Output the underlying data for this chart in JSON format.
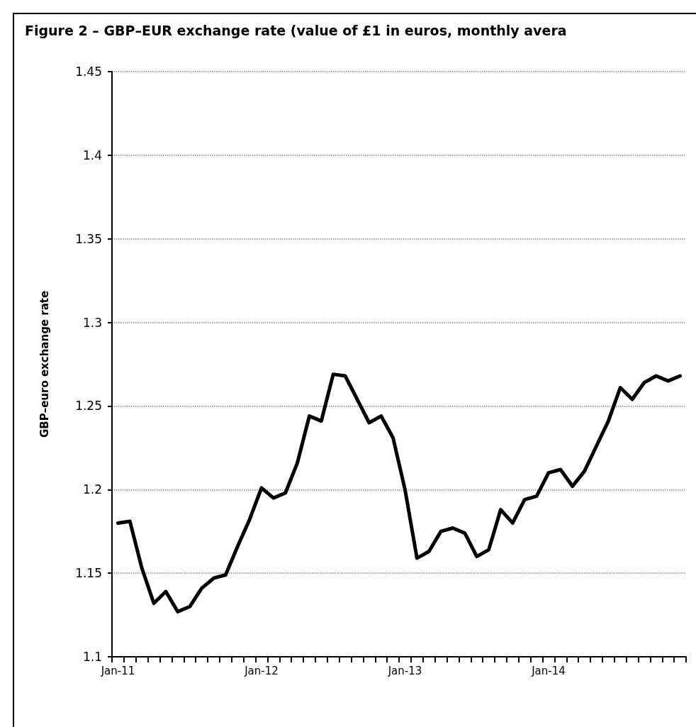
{
  "chart_data": {
    "type": "line",
    "title": "Figure 2 – GBP–EUR exchange rate (value of £1 in euros, monthly avera",
    "ylabel": "GBP–euro exchange rate",
    "categories": [
      "Jan-11",
      null,
      null,
      null,
      null,
      null,
      null,
      null,
      null,
      null,
      null,
      null,
      "Jan-12",
      null,
      null,
      null,
      null,
      null,
      null,
      null,
      null,
      null,
      null,
      null,
      "Jan-13",
      null,
      null,
      null,
      null,
      null,
      null,
      null,
      null,
      null,
      null,
      null,
      "Jan-14",
      null,
      null,
      null,
      null,
      null,
      null,
      null,
      null,
      null,
      null,
      null
    ],
    "values": [
      1.18,
      1.181,
      1.153,
      1.132,
      1.139,
      1.127,
      1.13,
      1.141,
      1.147,
      1.149,
      1.166,
      1.182,
      1.201,
      1.195,
      1.198,
      1.216,
      1.244,
      1.241,
      1.269,
      1.268,
      1.254,
      1.24,
      1.244,
      1.231,
      1.2,
      1.159,
      1.163,
      1.175,
      1.177,
      1.174,
      1.16,
      1.164,
      1.188,
      1.18,
      1.194,
      1.196,
      1.21,
      1.212,
      1.202,
      1.211,
      1.226,
      1.241,
      1.261,
      1.254,
      1.264,
      1.268,
      1.265,
      1.268
    ],
    "color": "#000000",
    "ylim": [
      1.1,
      1.45
    ],
    "yticks": [
      1.1,
      1.15,
      1.2,
      1.25,
      1.3,
      1.35,
      1.4,
      1.45
    ],
    "grid": "y",
    "marker": "none",
    "line_style": "solid"
  }
}
